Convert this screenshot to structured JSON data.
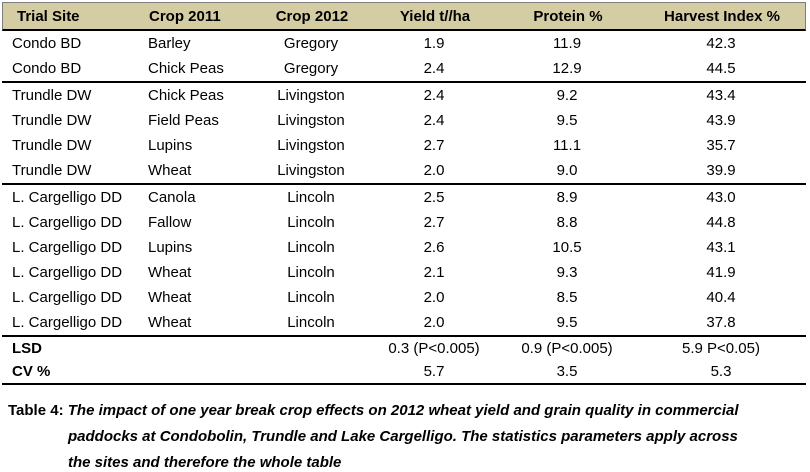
{
  "header": {
    "cells": [
      "Trial Site",
      "Crop 2011",
      "Crop 2012",
      "Yield t//ha",
      "Protein %",
      "Harvest Index %"
    ]
  },
  "rows": [
    {
      "site": "Condo BD",
      "crop2011": "Barley",
      "crop2012": "Gregory",
      "yield": "1.9",
      "protein": "11.9",
      "harvest": "42.3"
    },
    {
      "site": "Condo BD",
      "crop2011": "Chick Peas",
      "crop2012": "Gregory",
      "yield": "2.4",
      "protein": "12.9",
      "harvest": "44.5"
    },
    {
      "site": "Trundle DW",
      "crop2011": "Chick Peas",
      "crop2012": "Livingston",
      "yield": "2.4",
      "protein": "9.2",
      "harvest": "43.4"
    },
    {
      "site": "Trundle DW",
      "crop2011": "Field Peas",
      "crop2012": "Livingston",
      "yield": "2.4",
      "protein": "9.5",
      "harvest": "43.9"
    },
    {
      "site": "Trundle DW",
      "crop2011": "Lupins",
      "crop2012": "Livingston",
      "yield": "2.7",
      "protein": "11.1",
      "harvest": "35.7"
    },
    {
      "site": "Trundle DW",
      "crop2011": "Wheat",
      "crop2012": "Livingston",
      "yield": "2.0",
      "protein": "9.0",
      "harvest": "39.9"
    },
    {
      "site": "L. Cargelligo DD",
      "crop2011": "Canola",
      "crop2012": "Lincoln",
      "yield": "2.5",
      "protein": "8.9",
      "harvest": "43.0"
    },
    {
      "site": "L. Cargelligo DD",
      "crop2011": "Fallow",
      "crop2012": "Lincoln",
      "yield": "2.7",
      "protein": "8.8",
      "harvest": "44.8"
    },
    {
      "site": "L. Cargelligo DD",
      "crop2011": "Lupins",
      "crop2012": "Lincoln",
      "yield": "2.6",
      "protein": "10.5",
      "harvest": "43.1"
    },
    {
      "site": "L. Cargelligo DD",
      "crop2011": "Wheat",
      "crop2012": "Lincoln",
      "yield": "2.1",
      "protein": "9.3",
      "harvest": "41.9"
    },
    {
      "site": "L. Cargelligo DD",
      "crop2011": "Wheat",
      "crop2012": "Lincoln",
      "yield": "2.0",
      "protein": "8.5",
      "harvest": "40.4"
    },
    {
      "site": "L. Cargelligo DD",
      "crop2011": "Wheat",
      "crop2012": "Lincoln",
      "yield": "2.0",
      "protein": "9.5",
      "harvest": "37.8"
    }
  ],
  "stats": {
    "lsd_label": "LSD",
    "lsd": [
      "0.3 (P<0.005)",
      "0.9 (P<0.005)",
      "5.9 P<0.05)"
    ],
    "cv_label": "CV %",
    "cv": [
      "5.7",
      "3.5",
      "5.3"
    ]
  },
  "caption": {
    "label": "Table 4:",
    "line1": "The impact of one year break crop effects on 2012 wheat yield and grain quality in commercial",
    "line2": "paddocks at Condobolin, Trundle and Lake Cargelligo. The statistics parameters apply across",
    "line3": "the sites and therefore the whole table"
  },
  "colors": {
    "header_bg": "#d4cda4",
    "rule": "#000000"
  }
}
